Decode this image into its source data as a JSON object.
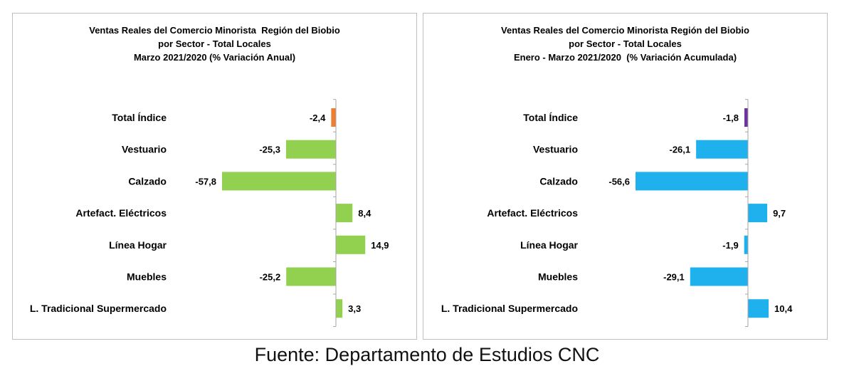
{
  "source": "Fuente: Departamento de Estudios CNC",
  "chart_data": [
    {
      "type": "bar",
      "orientation": "horizontal",
      "title_lines": [
        "Ventas Reales del Comercio Minorista  Región del Biobio",
        "por Sector - Total Locales",
        "Marzo 2021/2020 (% Variación Anual)"
      ],
      "categories": [
        "Total Índice",
        "Vestuario",
        "Calzado",
        "Artefact. Eléctricos",
        "Línea Hogar",
        "Muebles",
        "L. Tradicional Supermercado"
      ],
      "values": [
        -2.4,
        -25.3,
        -57.8,
        8.4,
        14.9,
        -25.2,
        3.3
      ],
      "value_labels": [
        "-2,4",
        "-25,3",
        "-57,8",
        "8,4",
        "14,9",
        "-25,2",
        "3,3"
      ],
      "colors": [
        "#ED7D31",
        "#92D050",
        "#92D050",
        "#92D050",
        "#92D050",
        "#92D050",
        "#92D050"
      ],
      "xlim": [
        -57.8,
        14.9
      ],
      "grid": false,
      "legend": "none"
    },
    {
      "type": "bar",
      "orientation": "horizontal",
      "title_lines": [
        "Ventas Reales del Comercio Minorista Región del Biobio",
        "por Sector - Total Locales",
        "Enero - Marzo 2021/2020  (% Variación Acumulada)"
      ],
      "categories": [
        "Total Índice",
        "Vestuario",
        "Calzado",
        "Artefact. Eléctricos",
        "Línea Hogar",
        "Muebles",
        "L. Tradicional Supermercado"
      ],
      "values": [
        -1.8,
        -26.1,
        -56.6,
        9.7,
        -1.9,
        -29.1,
        10.4
      ],
      "value_labels": [
        "-1,8",
        "-26,1",
        "-56,6",
        "9,7",
        "-1,9",
        "-29,1",
        "10,4"
      ],
      "colors": [
        "#7030A0",
        "#1FB0EE",
        "#1FB0EE",
        "#1FB0EE",
        "#1FB0EE",
        "#1FB0EE",
        "#1FB0EE"
      ],
      "xlim": [
        -56.6,
        10.4
      ],
      "grid": false,
      "legend": "none"
    }
  ]
}
